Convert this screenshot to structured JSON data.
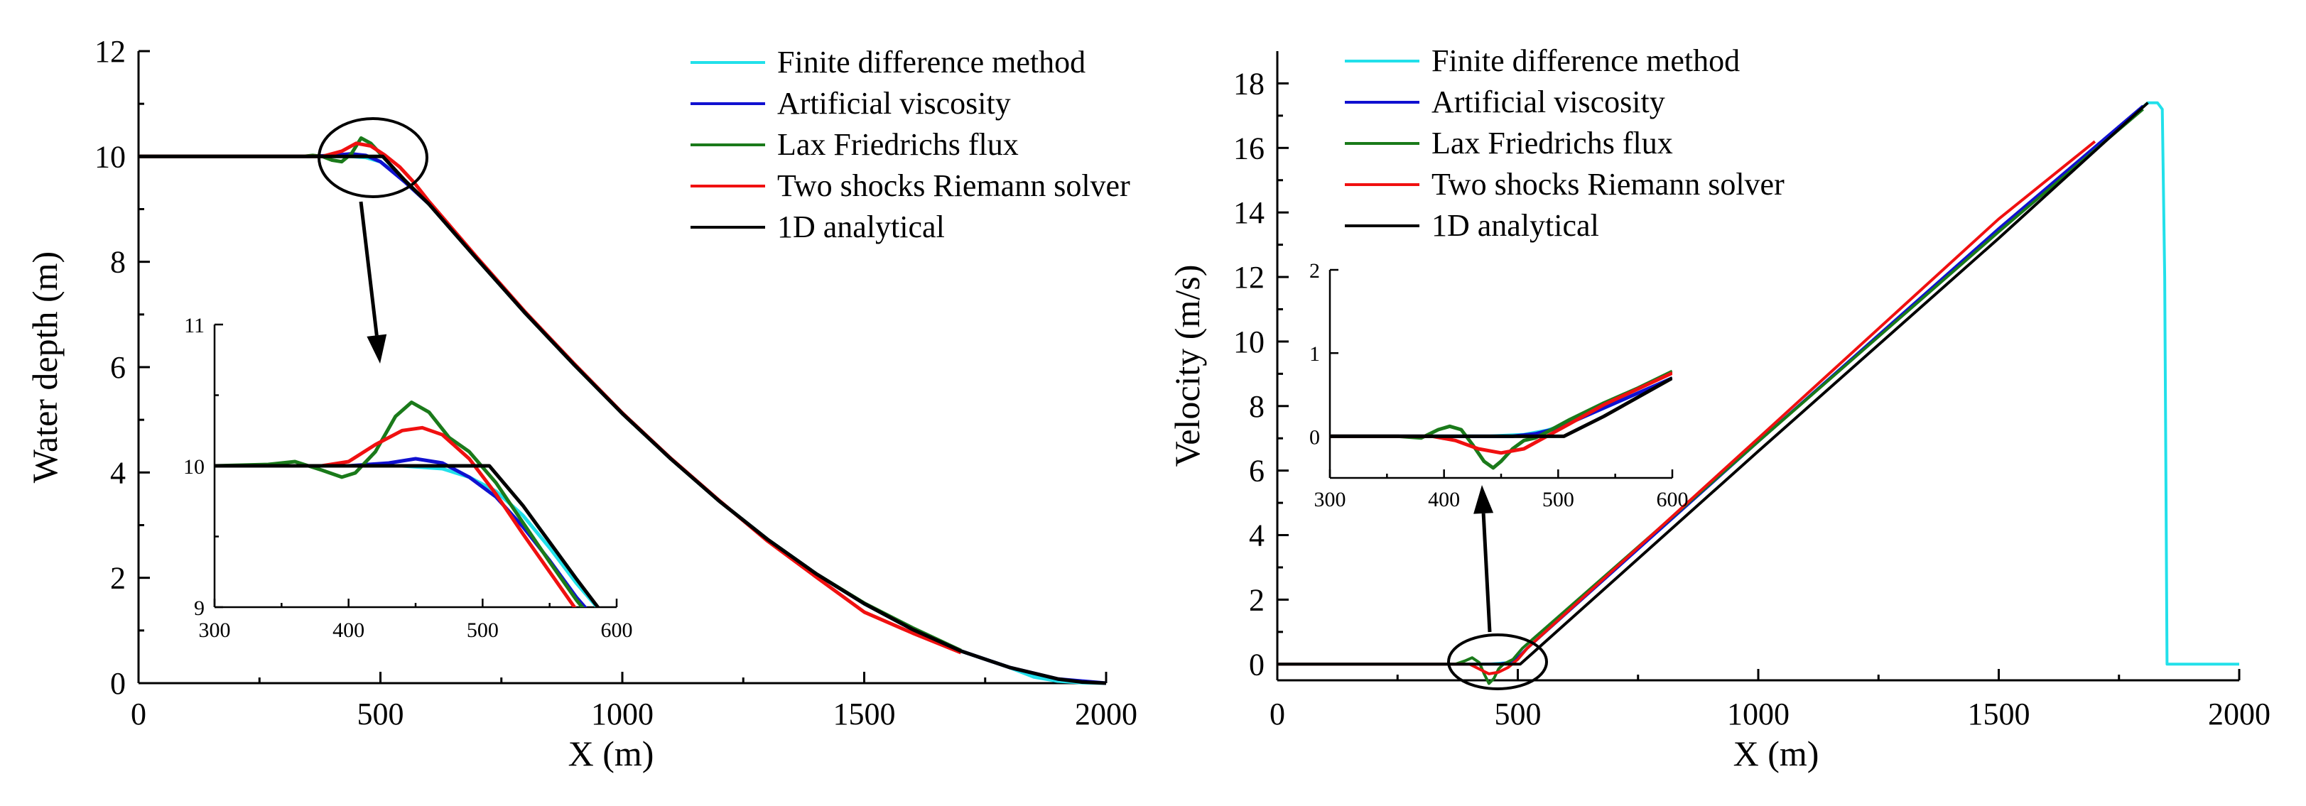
{
  "chart_data": [
    {
      "id": "depth",
      "type": "line",
      "xlabel": "X (m)",
      "ylabel": "Water depth (m)",
      "xlim": [
        0,
        2000
      ],
      "ylim": [
        0,
        12
      ],
      "xticks": [
        0,
        500,
        1000,
        1500,
        2000
      ],
      "yticks": [
        0,
        2,
        4,
        6,
        8,
        10,
        12
      ],
      "legend": {
        "placement": "top-right",
        "entries": [
          {
            "name": "Finite difference method",
            "color": "#22e0ea"
          },
          {
            "name": "Artificial viscosity",
            "color": "#1010d0"
          },
          {
            "name": "Lax Friedrichs flux",
            "color": "#1a7a1a"
          },
          {
            "name": "Two shocks Riemann solver",
            "color": "#f01010"
          },
          {
            "name": "1D analytical",
            "color": "#000000"
          }
        ]
      },
      "series": [
        {
          "name": "Finite difference method",
          "color": "#22e0ea",
          "x": [
            0,
            350,
            400,
            440,
            470,
            500,
            550,
            600,
            700,
            800,
            900,
            1000,
            1100,
            1200,
            1300,
            1400,
            1500,
            1600,
            1700,
            1800,
            1850,
            1900,
            1950,
            2000
          ],
          "y": [
            10,
            10,
            10,
            10,
            9.98,
            9.9,
            9.55,
            9.1,
            8.05,
            7.02,
            6.05,
            5.12,
            4.26,
            3.46,
            2.73,
            2.08,
            1.51,
            1.02,
            0.61,
            0.3,
            0.12,
            0.04,
            0.01,
            0
          ]
        },
        {
          "name": "Artificial viscosity",
          "color": "#1010d0",
          "x": [
            0,
            350,
            400,
            440,
            470,
            500,
            550,
            600,
            700,
            800,
            900,
            1000,
            1100,
            1200,
            1300,
            1400,
            1500,
            1600,
            1700,
            1800,
            1900,
            2000
          ],
          "y": [
            10,
            10,
            10.02,
            10.05,
            10.02,
            9.9,
            9.52,
            9.1,
            8.05,
            7.02,
            6.05,
            5.12,
            4.26,
            3.46,
            2.73,
            2.08,
            1.51,
            1.02,
            0.61,
            0.3,
            0.08,
            0
          ]
        },
        {
          "name": "Lax Friedrichs flux",
          "color": "#1a7a1a",
          "x": [
            0,
            340,
            360,
            380,
            400,
            420,
            440,
            460,
            480,
            500,
            520,
            550,
            600,
            700,
            800,
            900,
            1000,
            1100,
            1200,
            1300,
            1400,
            1500,
            1600,
            1700
          ],
          "y": [
            10,
            10,
            10.02,
            10,
            9.93,
            9.9,
            10.05,
            10.35,
            10.25,
            10.05,
            9.85,
            9.55,
            9.1,
            8.05,
            7.02,
            6.05,
            5.12,
            4.26,
            3.46,
            2.73,
            2.08,
            1.52,
            1.05,
            0.62
          ]
        },
        {
          "name": "Two shocks Riemann solver",
          "color": "#f01010",
          "x": [
            0,
            380,
            420,
            450,
            480,
            510,
            540,
            570,
            600,
            700,
            800,
            900,
            1000,
            1100,
            1200,
            1300,
            1400,
            1500,
            1600,
            1700
          ],
          "y": [
            10,
            10,
            10.1,
            10.25,
            10.2,
            10.02,
            9.8,
            9.5,
            9.15,
            8.08,
            7.04,
            6.07,
            5.13,
            4.27,
            3.47,
            2.7,
            2.02,
            1.35,
            0.95,
            0.58
          ]
        },
        {
          "name": "1D analytical",
          "color": "#000000",
          "x": [
            0,
            505,
            550,
            600,
            700,
            800,
            900,
            1000,
            1100,
            1200,
            1300,
            1400,
            1500,
            1600,
            1700,
            1800,
            1900,
            1950,
            2000
          ],
          "y": [
            10,
            10,
            9.55,
            9.1,
            8.05,
            7.02,
            6.05,
            5.12,
            4.26,
            3.46,
            2.73,
            2.08,
            1.51,
            1.02,
            0.61,
            0.3,
            0.08,
            0.02,
            0
          ]
        }
      ],
      "inset": {
        "xlim": [
          300,
          600
        ],
        "ylim": [
          9,
          11
        ],
        "xticks": [
          300,
          400,
          500,
          600
        ],
        "yticks": [
          9,
          10,
          11
        ],
        "series": [
          {
            "name": "Finite difference method",
            "color": "#22e0ea",
            "x": [
              300,
              400,
              440,
              470,
              490,
              510,
              530,
              550,
              570,
              590
            ],
            "y": [
              10,
              10,
              10,
              9.98,
              9.92,
              9.82,
              9.65,
              9.42,
              9.17,
              8.95
            ]
          },
          {
            "name": "Artificial viscosity",
            "color": "#1010d0",
            "x": [
              300,
              400,
              430,
              450,
              470,
              490,
              510,
              530,
              550,
              570,
              590
            ],
            "y": [
              10,
              10,
              10.02,
              10.05,
              10.02,
              9.92,
              9.78,
              9.57,
              9.33,
              9.07,
              8.85
            ]
          },
          {
            "name": "Lax Friedrichs flux",
            "color": "#1a7a1a",
            "x": [
              300,
              340,
              360,
              380,
              395,
              405,
              420,
              435,
              447,
              460,
              475,
              490,
              510,
              530,
              550,
              570,
              590
            ],
            "y": [
              10,
              10.01,
              10.03,
              9.97,
              9.92,
              9.95,
              10.1,
              10.35,
              10.45,
              10.38,
              10.2,
              10.1,
              9.88,
              9.6,
              9.32,
              9.05,
              8.82
            ]
          },
          {
            "name": "Two shocks Riemann solver",
            "color": "#f01010",
            "x": [
              300,
              380,
              400,
              420,
              440,
              455,
              470,
              490,
              510,
              530,
              550,
              570,
              590
            ],
            "y": [
              10,
              10,
              10.03,
              10.15,
              10.25,
              10.27,
              10.22,
              10.05,
              9.8,
              9.52,
              9.25,
              8.98,
              8.75
            ]
          },
          {
            "name": "1D analytical",
            "color": "#000000",
            "x": [
              300,
              505,
              530,
              550,
              570,
              590
            ],
            "y": [
              10,
              10,
              9.72,
              9.46,
              9.2,
              8.95
            ]
          }
        ]
      }
    },
    {
      "id": "velocity",
      "type": "line",
      "xlabel": "X (m)",
      "ylabel": "Velocity (m/s)",
      "xlim": [
        0,
        2000
      ],
      "ylim": [
        -0.5,
        19
      ],
      "xticks": [
        0,
        500,
        1000,
        1500,
        2000
      ],
      "yticks": [
        0,
        2,
        4,
        6,
        8,
        10,
        12,
        14,
        16,
        18
      ],
      "legend": {
        "placement": "top-left",
        "entries": [
          {
            "name": "Finite difference method",
            "color": "#22e0ea"
          },
          {
            "name": "Artificial viscosity",
            "color": "#1010d0"
          },
          {
            "name": "Lax Friedrichs flux",
            "color": "#1a7a1a"
          },
          {
            "name": "Two shocks Riemann solver",
            "color": "#f01010"
          },
          {
            "name": "1D analytical",
            "color": "#000000"
          }
        ]
      },
      "series": [
        {
          "name": "Finite difference method",
          "color": "#22e0ea",
          "x": [
            0,
            440,
            480,
            500,
            520,
            1000,
            1500,
            1810,
            1830,
            1840,
            1845,
            1850,
            2000
          ],
          "y": [
            0,
            0,
            0.05,
            0.15,
            0.5,
            6.9,
            13.5,
            17.4,
            17.4,
            17.2,
            12,
            0,
            0
          ]
        },
        {
          "name": "Artificial viscosity",
          "color": "#1010d0",
          "x": [
            0,
            460,
            480,
            500,
            520,
            1000,
            1500,
            1800
          ],
          "y": [
            0,
            0,
            0.05,
            0.2,
            0.5,
            6.9,
            13.5,
            17.3
          ]
        },
        {
          "name": "Lax Friedrichs flux",
          "color": "#1a7a1a",
          "x": [
            0,
            370,
            390,
            405,
            420,
            430,
            440,
            450,
            460,
            470,
            490,
            510,
            1000,
            1500,
            1800
          ],
          "y": [
            0,
            0,
            0.1,
            0.2,
            0.05,
            -0.3,
            -0.6,
            -0.45,
            -0.15,
            0,
            0.15,
            0.5,
            6.9,
            13.4,
            17.2
          ]
        },
        {
          "name": "Two shocks Riemann solver",
          "color": "#f01010",
          "x": [
            0,
            400,
            420,
            440,
            460,
            480,
            500,
            520,
            1000,
            1500,
            1700
          ],
          "y": [
            0,
            0,
            -0.15,
            -0.3,
            -0.25,
            -0.1,
            0.15,
            0.5,
            7,
            13.8,
            16.2
          ]
        },
        {
          "name": "1D analytical",
          "color": "#000000",
          "x": [
            0,
            505,
            1000,
            1500,
            1810
          ],
          "y": [
            0,
            0,
            6.6,
            13.2,
            17.4
          ]
        }
      ],
      "inset": {
        "xlim": [
          300,
          600
        ],
        "ylim": [
          -0.5,
          2
        ],
        "xticks": [
          300,
          400,
          500,
          600
        ],
        "yticks": [
          0,
          1,
          2
        ],
        "series": [
          {
            "name": "Finite difference method",
            "color": "#22e0ea",
            "x": [
              300,
              440,
              470,
              490,
              510,
              540,
              570,
              600
            ],
            "y": [
              0,
              0,
              0.02,
              0.07,
              0.16,
              0.34,
              0.52,
              0.7
            ]
          },
          {
            "name": "Artificial viscosity",
            "color": "#1010d0",
            "x": [
              300,
              460,
              480,
              500,
              520,
              550,
              580,
              600
            ],
            "y": [
              0,
              0,
              0.03,
              0.1,
              0.22,
              0.4,
              0.58,
              0.7
            ]
          },
          {
            "name": "Lax Friedrichs flux",
            "color": "#1a7a1a",
            "x": [
              300,
              360,
              380,
              395,
              405,
              415,
              425,
              435,
              443,
              450,
              460,
              470,
              480,
              490,
              510,
              540,
              570,
              600
            ],
            "y": [
              0,
              0,
              -0.02,
              0.08,
              0.12,
              0.08,
              -0.1,
              -0.3,
              -0.38,
              -0.3,
              -0.15,
              -0.05,
              -0.02,
              0.05,
              0.2,
              0.4,
              0.58,
              0.78
            ]
          },
          {
            "name": "Two shocks Riemann solver",
            "color": "#f01010",
            "x": [
              300,
              390,
              410,
              430,
              450,
              470,
              490,
              510,
              540,
              570,
              600
            ],
            "y": [
              0,
              0,
              -0.05,
              -0.15,
              -0.2,
              -0.15,
              0,
              0.15,
              0.38,
              0.57,
              0.76
            ]
          },
          {
            "name": "1D analytical",
            "color": "#000000",
            "x": [
              300,
              505,
              540,
              570,
              600
            ],
            "y": [
              0,
              0,
              0.24,
              0.47,
              0.7
            ]
          }
        ]
      }
    }
  ]
}
